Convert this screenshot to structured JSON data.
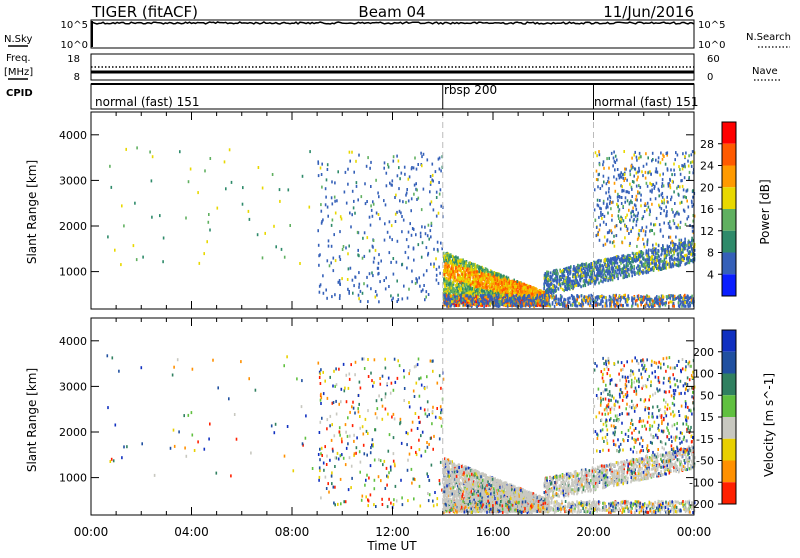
{
  "header": {
    "radar": "TIGER (fitACF)",
    "beam": "Beam 04",
    "date": "11/Jun/2016"
  },
  "side_labels": {
    "nsky": "N.Sky",
    "freq_top": "Freq.",
    "freq_unit": "[MHz]",
    "cpid": "CPID",
    "nsearch": "N.Search",
    "nave": "Nave"
  },
  "small_panels": {
    "nsky_ticks": [
      "10^5",
      "10^0"
    ],
    "nsearch_ticks": [
      "10^5",
      "10^0"
    ],
    "freq_ticks": [
      "18",
      "8"
    ],
    "nave_ticks": [
      "60",
      "0"
    ]
  },
  "cpid_segments": [
    {
      "label": "normal (fast) 151",
      "start_hour": 0
    },
    {
      "label": "rbsp 200",
      "start_hour": 14
    },
    {
      "label": "normal (fast) 151",
      "start_hour": 20
    }
  ],
  "chart_data": [
    {
      "type": "heatmap",
      "parameter": "Power",
      "ylabel": "Slant Range [km]",
      "xlabel": "Time UT",
      "x_ticks": [
        "00:00",
        "04:00",
        "08:00",
        "12:00",
        "16:00",
        "20:00",
        "00:00"
      ],
      "xlim_hours": [
        0,
        24
      ],
      "ylim_km": [
        180,
        4500
      ],
      "y_ticks": [
        1000,
        2000,
        3000,
        4000
      ],
      "colorbar_label": "Power [dB]",
      "colorbar_ticks": [
        "4",
        "8",
        "12",
        "16",
        "20",
        "24",
        "28"
      ],
      "colorbar_range": [
        0,
        30
      ],
      "colors": [
        "#0a1eff",
        "#3560b8",
        "#2e8a6a",
        "#60b060",
        "#e8d800",
        "#ff9a00",
        "#ff5a00",
        "#ff0000"
      ],
      "mode_change_hours": [
        14,
        20
      ]
    },
    {
      "type": "heatmap",
      "parameter": "Velocity",
      "ylabel": "Slant Range [km]",
      "xlabel": "Time UT",
      "x_ticks": [
        "00:00",
        "04:00",
        "08:00",
        "12:00",
        "16:00",
        "20:00",
        "00:00"
      ],
      "xlim_hours": [
        0,
        24
      ],
      "ylim_km": [
        180,
        4500
      ],
      "y_ticks": [
        1000,
        2000,
        3000,
        4000
      ],
      "colorbar_label": "Velocity [m s^-1]",
      "colorbar_ticks": [
        "200",
        "100",
        "50",
        "15",
        "-15",
        "-50",
        "-100",
        "-200"
      ],
      "colorbar_range": [
        -250,
        250
      ],
      "colors": [
        "#1030c0",
        "#2050a0",
        "#308060",
        "#60c040",
        "#c8c8c0",
        "#e8d000",
        "#ff9000",
        "#ff2000"
      ],
      "mode_change_hours": [
        14,
        20
      ]
    }
  ]
}
